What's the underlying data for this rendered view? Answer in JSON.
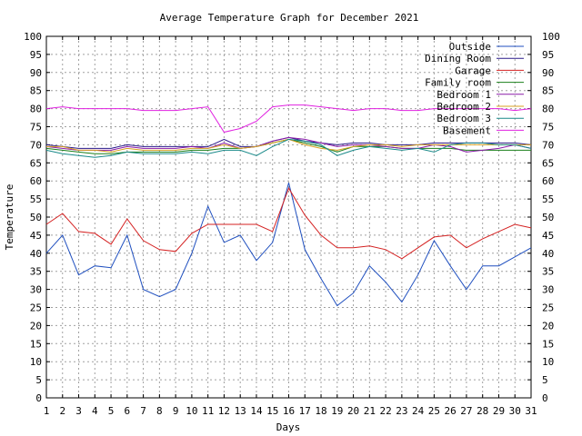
{
  "chart_data": {
    "type": "line",
    "title": "Average Temperature Graph for December 2021",
    "xlabel": "Days",
    "ylabel": "Temperature",
    "xlim": [
      1,
      31
    ],
    "ylim": [
      0,
      100
    ],
    "x_ticks": [
      1,
      2,
      3,
      4,
      5,
      6,
      7,
      8,
      9,
      10,
      11,
      12,
      13,
      14,
      15,
      16,
      17,
      18,
      19,
      20,
      21,
      22,
      23,
      24,
      25,
      26,
      27,
      28,
      29,
      30,
      31
    ],
    "y_ticks": [
      0,
      5,
      10,
      15,
      20,
      25,
      30,
      35,
      40,
      45,
      50,
      55,
      60,
      65,
      70,
      75,
      80,
      85,
      90,
      95,
      100
    ],
    "grid": true,
    "legend_position": "top-right",
    "x": [
      1,
      2,
      3,
      4,
      5,
      6,
      7,
      8,
      9,
      10,
      11,
      12,
      13,
      14,
      15,
      16,
      17,
      18,
      19,
      20,
      21,
      22,
      23,
      24,
      25,
      26,
      27,
      28,
      29,
      30,
      31
    ],
    "series": [
      {
        "name": "Outside",
        "color": "#1f4fbf",
        "values": [
          40,
          45,
          34,
          36.5,
          36,
          45,
          30,
          28,
          30,
          40,
          53,
          43,
          45,
          38,
          43,
          59.5,
          41,
          33,
          25.5,
          29,
          36.5,
          32,
          26.5,
          34,
          43.5,
          36.5,
          30,
          36.5,
          36.5,
          39,
          41.5
        ]
      },
      {
        "name": "Dining Room",
        "color": "#2a1a8a",
        "values": [
          70,
          69.5,
          69,
          69,
          69,
          70,
          69.5,
          69.5,
          69.5,
          69.5,
          69.5,
          71.5,
          69.5,
          69.5,
          71,
          72,
          71,
          70.5,
          70,
          70.5,
          70.5,
          70,
          70,
          70,
          70.5,
          70.5,
          70.5,
          70.5,
          70.5,
          70.5,
          70
        ]
      },
      {
        "name": "Garage",
        "color": "#d42020",
        "values": [
          48,
          51,
          46,
          45.5,
          42.5,
          49.5,
          43.5,
          41,
          40.5,
          45.5,
          48,
          48,
          48,
          48,
          46,
          58,
          50.5,
          45,
          41.5,
          41.5,
          42,
          41,
          38.5,
          41.5,
          44.5,
          45,
          41.5,
          44,
          46,
          48,
          47
        ]
      },
      {
        "name": "Family room",
        "color": "#1a7f1a",
        "values": [
          69,
          68.5,
          68,
          67.5,
          67.5,
          68,
          68,
          68,
          68,
          68.5,
          68.5,
          69,
          69,
          69.5,
          70.5,
          71.5,
          70.5,
          69.5,
          68,
          69.5,
          69.5,
          69.5,
          69,
          69,
          69,
          69,
          68.5,
          68.5,
          68.5,
          68.5,
          68.5
        ]
      },
      {
        "name": "Bedroom 1",
        "color": "#8a1aa8",
        "values": [
          69.5,
          69,
          68.5,
          68.5,
          68.5,
          69.5,
          69,
          69,
          69,
          69.5,
          69,
          70.5,
          69,
          69.5,
          71,
          72,
          71.5,
          70.5,
          69.5,
          70,
          70,
          69.5,
          69,
          69,
          70,
          69.5,
          68,
          68.5,
          69,
          70,
          69
        ]
      },
      {
        "name": "Bedroom 2",
        "color": "#d8a020",
        "values": [
          69.5,
          69.5,
          68.5,
          68.5,
          68,
          69,
          68.5,
          68.5,
          68.5,
          69,
          69,
          70,
          69,
          69.5,
          70.5,
          71.5,
          70,
          69,
          68.5,
          69.5,
          70,
          70,
          69.5,
          70,
          70,
          70,
          70,
          70,
          70,
          70,
          70
        ]
      },
      {
        "name": "Bedroom 3",
        "color": "#1a8a8a",
        "values": [
          68.5,
          67.5,
          67,
          66.5,
          67,
          68,
          67.5,
          67.5,
          67.5,
          68,
          67.5,
          68.5,
          68.5,
          67,
          69.5,
          71.5,
          71,
          70,
          67,
          68.5,
          69.5,
          69,
          68.5,
          69,
          68,
          70,
          70.5,
          70.5,
          70,
          70,
          69
        ]
      },
      {
        "name": "Basement",
        "color": "#e020e0",
        "values": [
          80,
          80.5,
          80,
          80,
          80,
          80,
          79.5,
          79.5,
          79.5,
          80,
          80.5,
          73.5,
          74.5,
          76.5,
          80.5,
          81,
          81,
          80.5,
          80,
          79.5,
          80,
          80,
          79.5,
          79.5,
          80,
          80,
          80,
          80,
          80,
          79.5,
          80
        ]
      }
    ]
  }
}
